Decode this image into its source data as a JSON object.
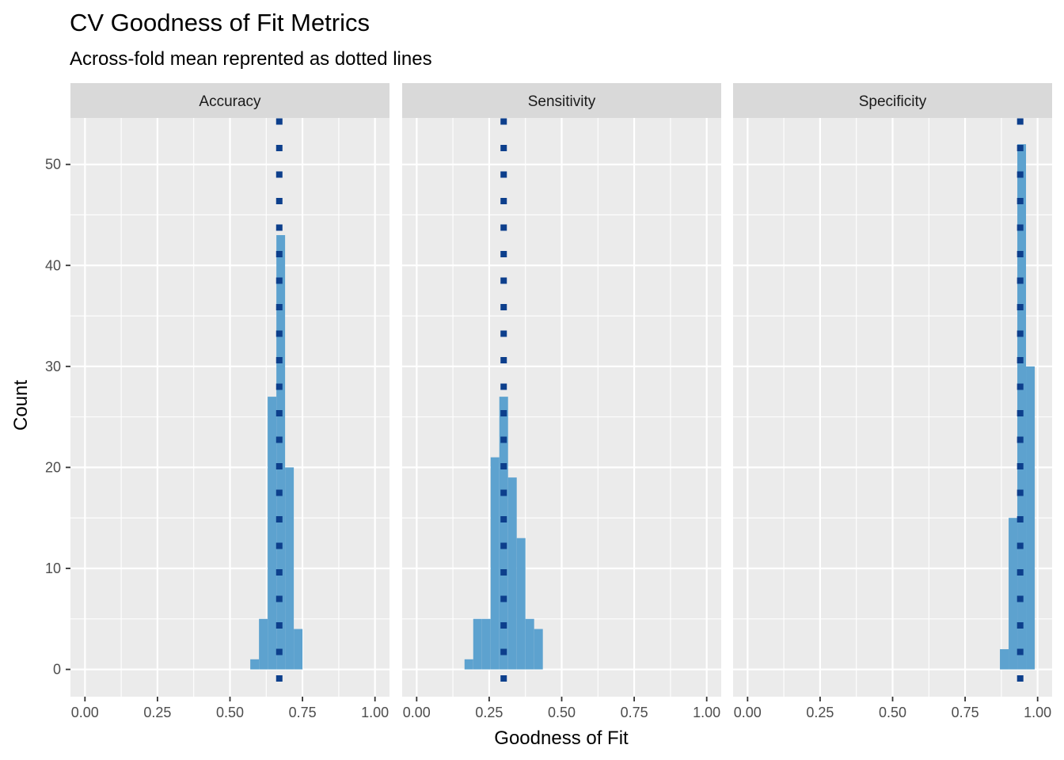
{
  "title": "CV Goodness of Fit Metrics",
  "subtitle": "Across-fold mean reprented as dotted lines",
  "colors": {
    "panel_bg": "#EBEBEB",
    "strip_bg": "#D9D9D9",
    "grid": "#FFFFFF",
    "bar": "#5DA2CF",
    "mean_line": "#0D3F8C"
  },
  "chart_data": {
    "type": "bar",
    "xlabel": "Goodness of Fit",
    "ylabel": "Count",
    "x_ticks": [
      0,
      0.25,
      0.5,
      0.75,
      1
    ],
    "x_tick_labels": [
      "0.00",
      "0.25",
      "0.50",
      "0.75",
      "1.00"
    ],
    "y_ticks": [
      0,
      10,
      20,
      30,
      40,
      50
    ],
    "y_tick_labels": [
      "0",
      "10",
      "20",
      "30",
      "40",
      "50"
    ],
    "xlim": [
      -0.05,
      1.05
    ],
    "ylim": [
      -2.7,
      54.6
    ],
    "bin_width": 0.03,
    "grid": true,
    "facets": [
      {
        "label": "Accuracy",
        "mean": 0.67,
        "bins": [
          {
            "x0": 0.57,
            "x1": 0.6,
            "count": 1
          },
          {
            "x0": 0.6,
            "x1": 0.63,
            "count": 5
          },
          {
            "x0": 0.63,
            "x1": 0.66,
            "count": 27
          },
          {
            "x0": 0.66,
            "x1": 0.69,
            "count": 43
          },
          {
            "x0": 0.69,
            "x1": 0.72,
            "count": 20
          },
          {
            "x0": 0.72,
            "x1": 0.75,
            "count": 4
          }
        ]
      },
      {
        "label": "Sensitivity",
        "mean": 0.3,
        "bins": [
          {
            "x0": 0.165,
            "x1": 0.195,
            "count": 1
          },
          {
            "x0": 0.195,
            "x1": 0.225,
            "count": 5
          },
          {
            "x0": 0.225,
            "x1": 0.255,
            "count": 5
          },
          {
            "x0": 0.255,
            "x1": 0.285,
            "count": 21
          },
          {
            "x0": 0.285,
            "x1": 0.315,
            "count": 27
          },
          {
            "x0": 0.315,
            "x1": 0.345,
            "count": 19
          },
          {
            "x0": 0.345,
            "x1": 0.375,
            "count": 13
          },
          {
            "x0": 0.375,
            "x1": 0.405,
            "count": 5
          },
          {
            "x0": 0.405,
            "x1": 0.435,
            "count": 4
          }
        ]
      },
      {
        "label": "Specificity",
        "mean": 0.94,
        "bins": [
          {
            "x0": 0.87,
            "x1": 0.9,
            "count": 2
          },
          {
            "x0": 0.9,
            "x1": 0.93,
            "count": 15
          },
          {
            "x0": 0.93,
            "x1": 0.96,
            "count": 52
          },
          {
            "x0": 0.96,
            "x1": 0.99,
            "count": 30
          }
        ]
      }
    ]
  }
}
